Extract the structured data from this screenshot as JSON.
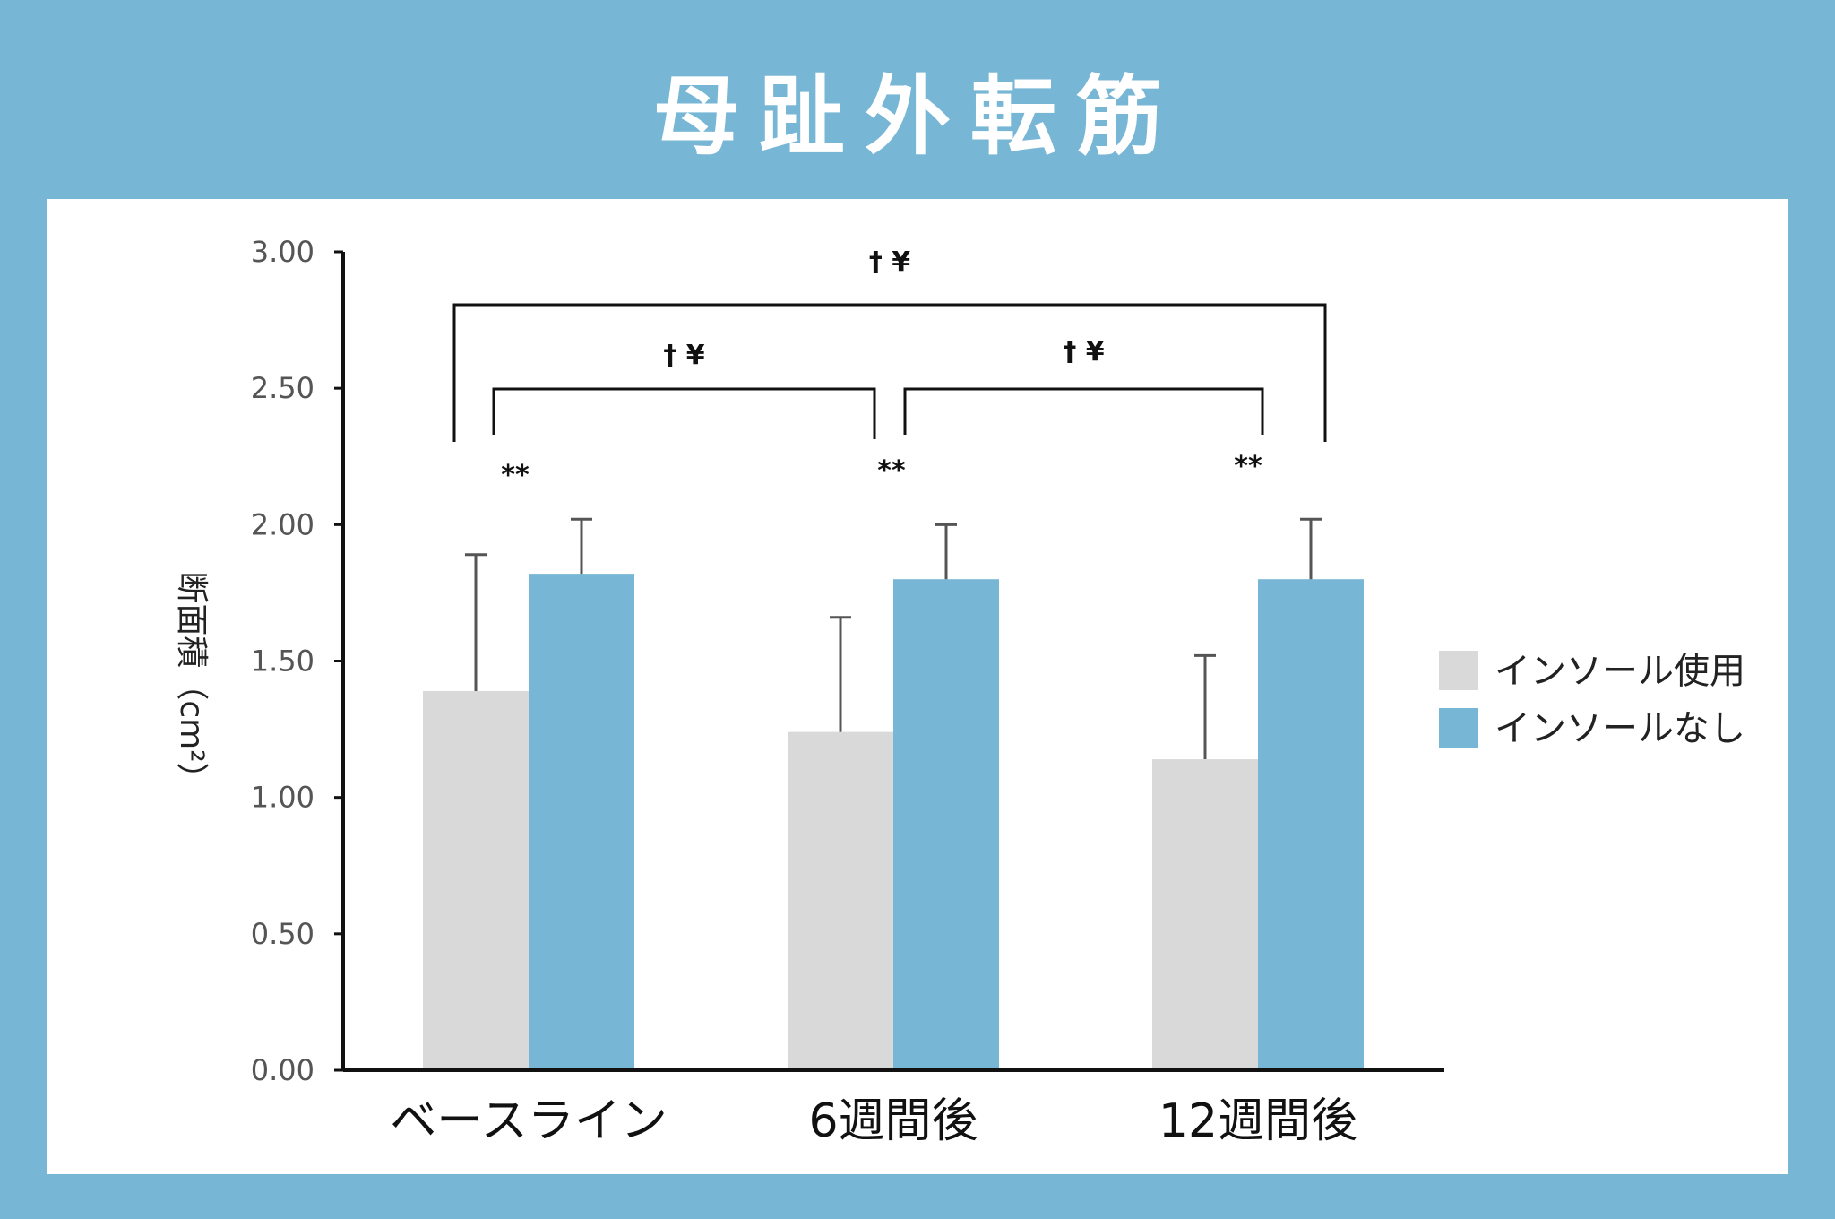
{
  "title": "母趾外転筋",
  "chart_data": {
    "type": "bar",
    "ylabel": "断面積（cm²）",
    "ylim": [
      0,
      3
    ],
    "yticks": [
      "0.00",
      "0.50",
      "1.00",
      "1.50",
      "2.00",
      "2.50",
      "3.00"
    ],
    "categories": [
      "ベースライン",
      "6週間後",
      "12週間後"
    ],
    "series": [
      {
        "name": "インソール使用",
        "color": "#d9d9d9",
        "values": [
          1.39,
          1.24,
          1.14
        ],
        "error": [
          0.5,
          0.42,
          0.38
        ]
      },
      {
        "name": "インソールなし",
        "color": "#78b6d5",
        "values": [
          1.82,
          1.8,
          1.8
        ],
        "error": [
          0.2,
          0.2,
          0.22
        ]
      }
    ],
    "significance": {
      "within": [
        "**",
        "**",
        "**"
      ],
      "brackets": [
        {
          "from": 0,
          "to": 1,
          "label": "† ¥"
        },
        {
          "from": 1,
          "to": 2,
          "label": "† ¥"
        },
        {
          "from": 0,
          "to": 2,
          "label": "† ¥"
        }
      ]
    },
    "legend_position": "right"
  }
}
